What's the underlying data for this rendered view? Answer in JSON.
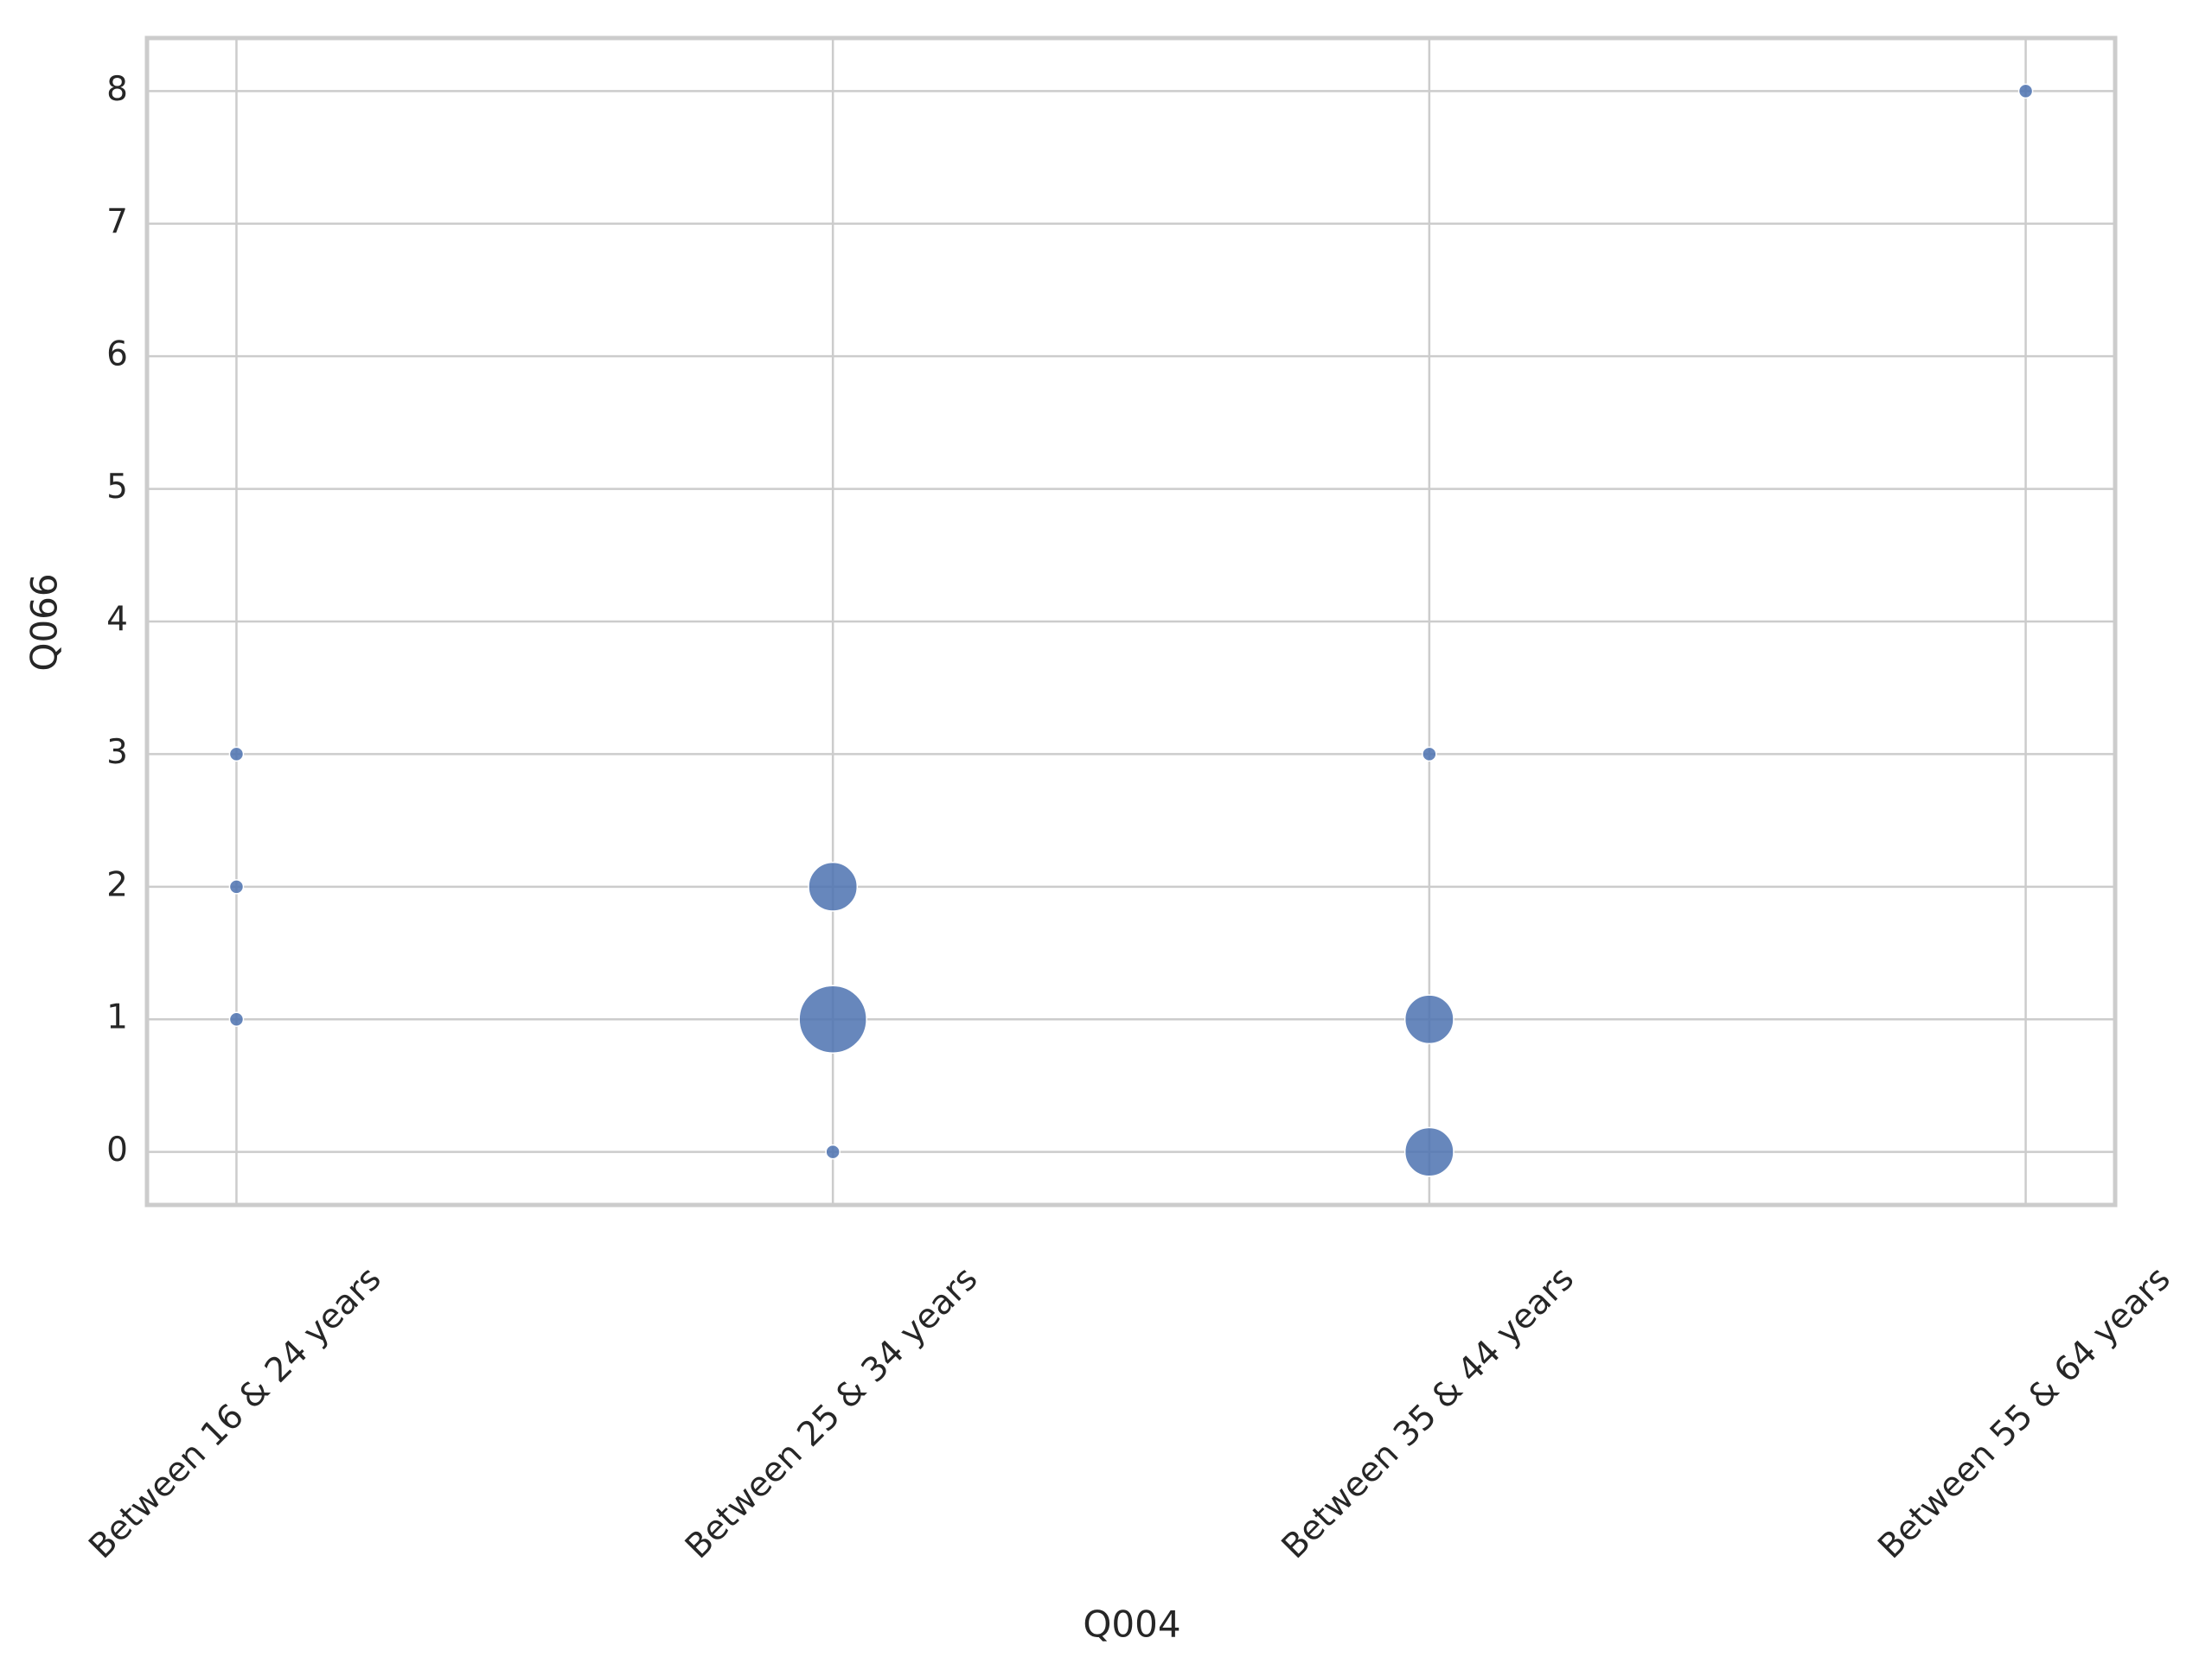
{
  "chart_data": {
    "type": "scatter",
    "x_label": "Q004",
    "y_label": "Q066",
    "categories": [
      "Between 16 & 24 years",
      "Between 25 & 34 years",
      "Between 35 & 44 years",
      "Between 55 & 64 years"
    ],
    "xlim": [
      -0.15,
      3.15
    ],
    "ylim": [
      -0.4,
      8.4
    ],
    "yticks": [
      0,
      1,
      2,
      3,
      4,
      5,
      6,
      7,
      8
    ],
    "grid": true,
    "series": [
      {
        "color": "#4c72b0",
        "x": [
          "Between 16 & 24 years",
          "Between 16 & 24 years",
          "Between 16 & 24 years",
          "Between 25 & 34 years",
          "Between 25 & 34 years",
          "Between 25 & 34 years",
          "Between 35 & 44 years",
          "Between 35 & 44 years",
          "Between 35 & 44 years",
          "Between 55 & 64 years"
        ],
        "values": [
          3,
          2,
          1,
          2,
          1,
          0,
          3,
          1,
          0,
          8
        ],
        "sizes": [
          1,
          1,
          1,
          3,
          5,
          1,
          1,
          3,
          3,
          1
        ]
      }
    ]
  }
}
